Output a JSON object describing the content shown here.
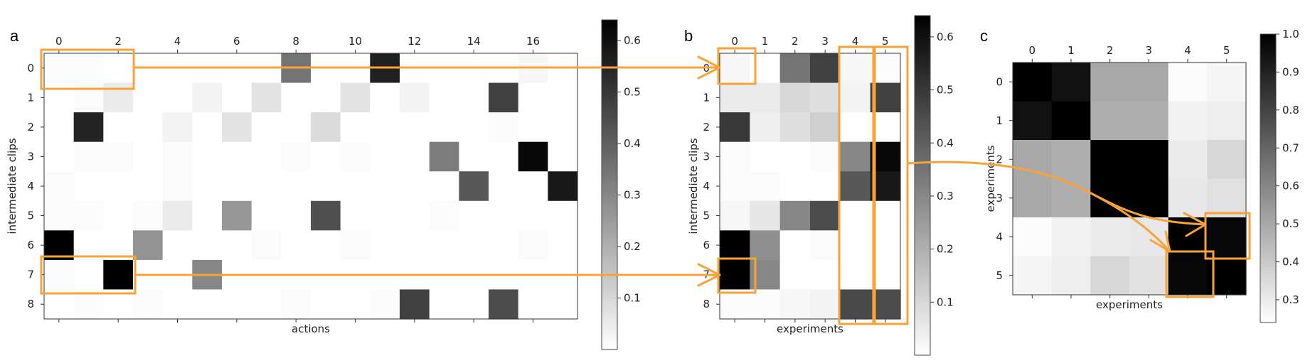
{
  "figure": {
    "highlight_color": "#f7a33a",
    "colormap": "greys"
  },
  "chart_data": [
    {
      "type": "heatmap",
      "panel_label": "a",
      "xlabel": "actions",
      "ylabel": "intermediate clips",
      "x_tick_labels": [
        "0",
        "2",
        "4",
        "6",
        "8",
        "10",
        "12",
        "14",
        "16"
      ],
      "y_tick_labels": [
        "0",
        "1",
        "2",
        "3",
        "4",
        "5",
        "6",
        "7",
        "8"
      ],
      "n_cols": 18,
      "n_rows": 9,
      "colorbar": {
        "min": 0.0,
        "max": 0.64,
        "tick_labels": [
          "0.1",
          "0.2",
          "0.3",
          "0.4",
          "0.5",
          "0.6"
        ]
      },
      "values": [
        [
          0.01,
          0.01,
          0.0,
          0.0,
          0.0,
          0.0,
          0.0,
          0.0,
          0.35,
          0.0,
          0.0,
          0.56,
          0.0,
          0.0,
          0.0,
          0.0,
          0.02,
          0.0
        ],
        [
          0.0,
          0.01,
          0.05,
          0.0,
          0.0,
          0.03,
          0.0,
          0.07,
          0.0,
          0.0,
          0.07,
          0.0,
          0.03,
          0.0,
          0.0,
          0.48,
          0.0,
          0.0
        ],
        [
          0.0,
          0.55,
          0.0,
          0.0,
          0.03,
          0.0,
          0.07,
          0.0,
          0.0,
          0.09,
          0.0,
          0.0,
          0.0,
          0.0,
          0.0,
          0.01,
          0.0,
          0.0
        ],
        [
          0.0,
          0.01,
          0.01,
          0.0,
          0.01,
          0.0,
          0.0,
          0.0,
          0.01,
          0.0,
          0.01,
          0.0,
          0.0,
          0.33,
          0.0,
          0.0,
          0.62,
          0.0
        ],
        [
          0.01,
          0.0,
          0.0,
          0.0,
          0.01,
          0.0,
          0.0,
          0.0,
          0.0,
          0.0,
          0.0,
          0.0,
          0.0,
          0.0,
          0.42,
          0.0,
          0.0,
          0.58
        ],
        [
          0.01,
          0.01,
          0.0,
          0.01,
          0.05,
          0.0,
          0.26,
          0.0,
          0.0,
          0.44,
          0.0,
          0.0,
          0.0,
          0.01,
          0.0,
          0.0,
          0.0,
          0.0
        ],
        [
          0.64,
          0.0,
          0.0,
          0.27,
          0.0,
          0.0,
          0.0,
          0.01,
          0.0,
          0.0,
          0.01,
          0.0,
          0.0,
          0.0,
          0.0,
          0.0,
          0.01,
          0.0
        ],
        [
          0.01,
          0.0,
          0.64,
          0.0,
          0.0,
          0.3,
          0.0,
          0.0,
          0.0,
          0.0,
          0.0,
          0.0,
          0.0,
          0.0,
          0.0,
          0.0,
          0.0,
          0.0
        ],
        [
          0.0,
          0.01,
          0.0,
          0.01,
          0.0,
          0.0,
          0.0,
          0.0,
          0.01,
          0.0,
          0.0,
          0.01,
          0.48,
          0.0,
          0.0,
          0.45,
          0.0,
          0.0
        ]
      ]
    },
    {
      "type": "heatmap",
      "panel_label": "b",
      "xlabel": "experiments",
      "ylabel": "intermediate clips",
      "x_tick_labels": [
        "0",
        "1",
        "2",
        "3",
        "4",
        "5"
      ],
      "y_tick_labels": [
        "0",
        "1",
        "2",
        "3",
        "4",
        "5",
        "6",
        "7",
        "8"
      ],
      "n_cols": 6,
      "n_rows": 9,
      "colorbar": {
        "min": 0.0,
        "max": 0.64,
        "tick_labels": [
          "0.1",
          "0.2",
          "0.3",
          "0.4",
          "0.5",
          "0.6"
        ]
      },
      "values": [
        [
          0.02,
          0.0,
          0.35,
          0.48,
          0.02,
          0.01
        ],
        [
          0.05,
          0.05,
          0.1,
          0.08,
          0.03,
          0.48
        ],
        [
          0.5,
          0.04,
          0.08,
          0.12,
          0.0,
          0.0
        ],
        [
          0.01,
          0.0,
          0.0,
          0.01,
          0.3,
          0.62
        ],
        [
          0.01,
          0.01,
          0.0,
          0.0,
          0.42,
          0.58
        ],
        [
          0.02,
          0.06,
          0.3,
          0.45,
          0.0,
          0.0
        ],
        [
          0.64,
          0.28,
          0.0,
          0.01,
          0.0,
          0.0
        ],
        [
          0.64,
          0.3,
          0.0,
          0.0,
          0.0,
          0.0
        ],
        [
          0.01,
          0.01,
          0.02,
          0.03,
          0.46,
          0.45
        ]
      ]
    },
    {
      "type": "heatmap",
      "panel_label": "c",
      "xlabel": "experiments",
      "ylabel": "experiments",
      "x_tick_labels": [
        "0",
        "1",
        "2",
        "3",
        "4",
        "5"
      ],
      "y_tick_labels": [
        "0",
        "1",
        "2",
        "3",
        "4",
        "5"
      ],
      "n_cols": 6,
      "n_rows": 6,
      "colorbar": {
        "min": 0.24,
        "max": 1.0,
        "tick_labels": [
          "0.3",
          "0.4",
          "0.5",
          "0.6",
          "0.7",
          "0.8",
          "0.9",
          "1.0"
        ]
      },
      "values": [
        [
          1.0,
          0.95,
          0.5,
          0.5,
          0.25,
          0.27
        ],
        [
          0.95,
          1.0,
          0.48,
          0.48,
          0.28,
          0.29
        ],
        [
          0.5,
          0.48,
          1.0,
          1.0,
          0.3,
          0.36
        ],
        [
          0.5,
          0.48,
          1.0,
          1.0,
          0.31,
          0.33
        ],
        [
          0.25,
          0.28,
          0.3,
          0.31,
          1.0,
          0.98
        ],
        [
          0.27,
          0.29,
          0.36,
          0.33,
          0.98,
          1.0
        ]
      ]
    }
  ]
}
